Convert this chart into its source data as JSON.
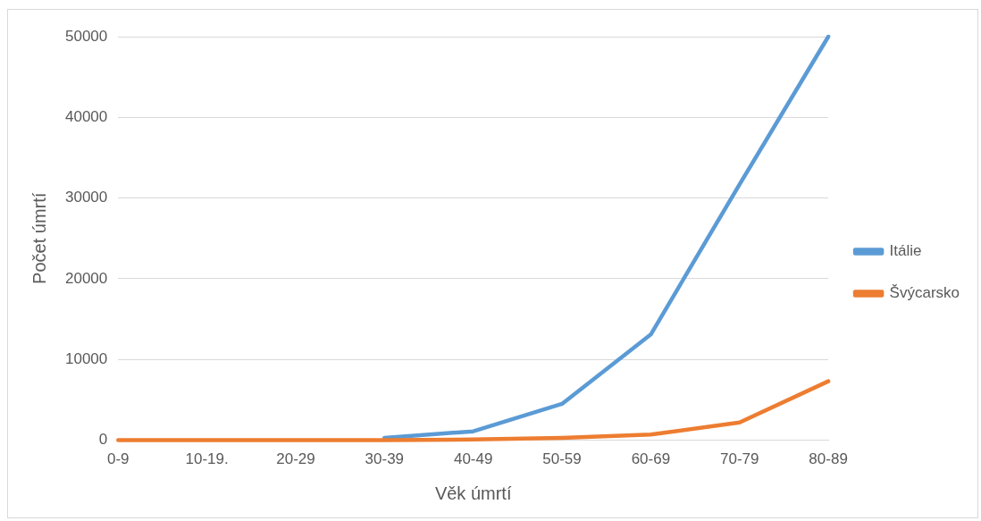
{
  "chart_data": {
    "type": "line",
    "xlabel": "Věk úmrtí",
    "ylabel": "Počet úmrtí",
    "categories": [
      "0-9",
      "10-19.",
      "20-29",
      "30-39",
      "40-49",
      "50-59",
      "60-69",
      "70-79",
      "80-89"
    ],
    "series": [
      {
        "name": "Itálie",
        "color": "#5b9bd5",
        "values": [
          null,
          null,
          null,
          300,
          1100,
          4500,
          13100,
          31700,
          50000
        ]
      },
      {
        "name": "Švýcarsko",
        "color": "#ed7d31",
        "values": [
          0,
          0,
          0,
          0,
          100,
          300,
          700,
          2200,
          7300
        ]
      }
    ],
    "ylim": [
      0,
      50000
    ],
    "yticks": [
      0,
      10000,
      20000,
      30000,
      40000,
      50000
    ],
    "grid": "y",
    "legend": "right",
    "marker": "none",
    "line_style": "solid"
  }
}
